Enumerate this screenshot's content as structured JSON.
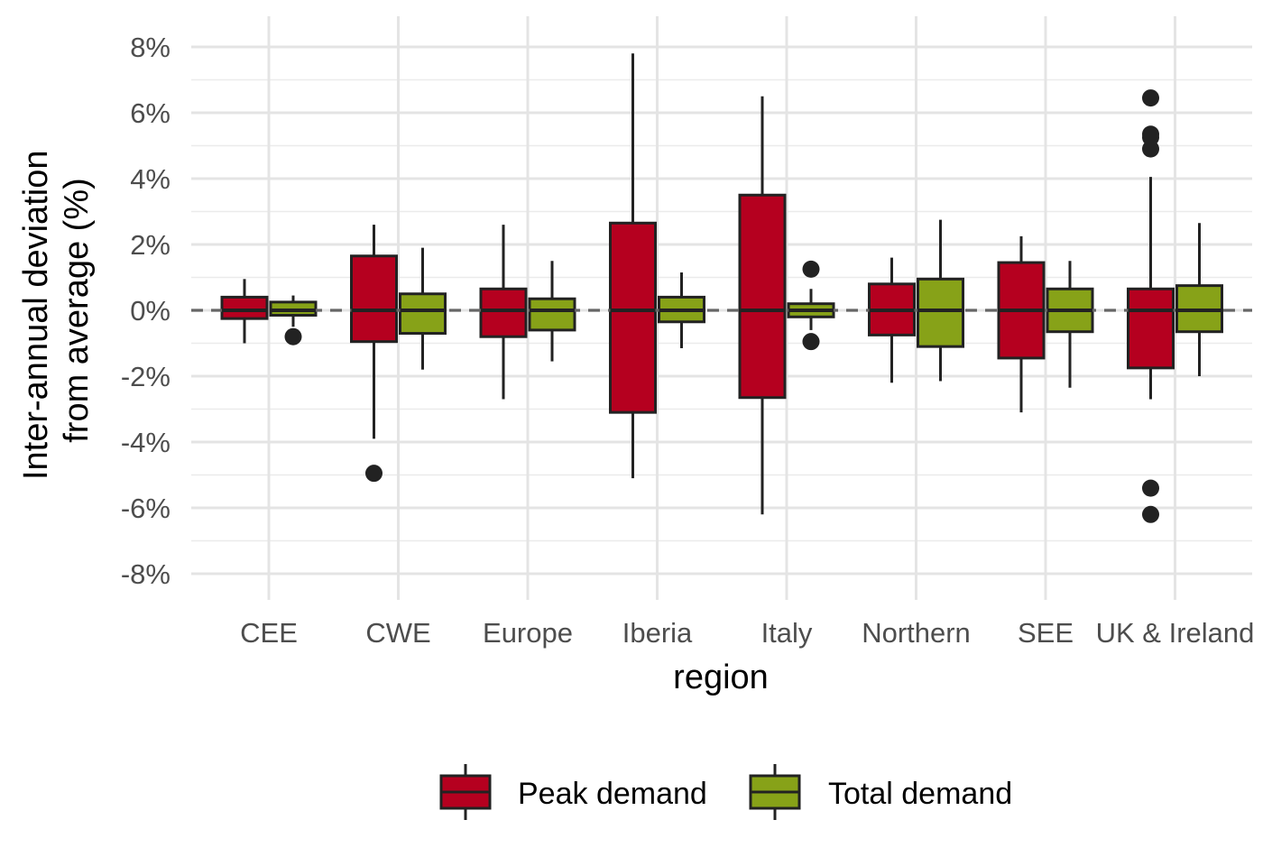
{
  "chart_data": {
    "type": "boxplot",
    "xlabel": "region",
    "ylabel_lines": [
      "Inter-annual deviation",
      "from average (%)"
    ],
    "ylim": [
      -8.5,
      8.6
    ],
    "y_ticks": [
      {
        "value": 8,
        "label": "8%"
      },
      {
        "value": 6,
        "label": "6%"
      },
      {
        "value": 4,
        "label": "4%"
      },
      {
        "value": 2,
        "label": "2%"
      },
      {
        "value": 0,
        "label": "0%"
      },
      {
        "value": -2,
        "label": "-2%"
      },
      {
        "value": -4,
        "label": "-4%"
      },
      {
        "value": -6,
        "label": "-6%"
      },
      {
        "value": -8,
        "label": "-8%"
      }
    ],
    "y_minor_ticks": [
      7,
      5,
      3,
      1,
      -1,
      -3,
      -5,
      -7
    ],
    "reference_line": 0,
    "categories": [
      "CEE",
      "CWE",
      "Europe",
      "Iberia",
      "Italy",
      "Northern",
      "SEE",
      "UK & Ireland"
    ],
    "legend_position": "bottom",
    "series": [
      {
        "name": "Peak demand",
        "color": "#b5001f",
        "boxes": [
          {
            "whisker_low": -1.0,
            "q1": -0.25,
            "median": 0.0,
            "q3": 0.4,
            "whisker_high": 0.95,
            "outliers": []
          },
          {
            "whisker_low": -3.9,
            "q1": -0.95,
            "median": 0.0,
            "q3": 1.65,
            "whisker_high": 2.6,
            "outliers": [
              -4.95
            ]
          },
          {
            "whisker_low": -2.7,
            "q1": -0.8,
            "median": 0.0,
            "q3": 0.65,
            "whisker_high": 2.6,
            "outliers": []
          },
          {
            "whisker_low": -5.1,
            "q1": -3.1,
            "median": 0.0,
            "q3": 2.65,
            "whisker_high": 7.8,
            "outliers": []
          },
          {
            "whisker_low": -6.2,
            "q1": -2.65,
            "median": 0.0,
            "q3": 3.5,
            "whisker_high": 6.5,
            "outliers": []
          },
          {
            "whisker_low": -2.2,
            "q1": -0.75,
            "median": 0.0,
            "q3": 0.8,
            "whisker_high": 1.6,
            "outliers": []
          },
          {
            "whisker_low": -3.1,
            "q1": -1.45,
            "median": 0.0,
            "q3": 1.45,
            "whisker_high": 2.25,
            "outliers": []
          },
          {
            "whisker_low": -2.7,
            "q1": -1.75,
            "median": 0.0,
            "q3": 0.65,
            "whisker_high": 4.05,
            "outliers": [
              6.45,
              5.35,
              5.25,
              4.9,
              -5.4,
              -6.2
            ]
          }
        ]
      },
      {
        "name": "Total demand",
        "color": "#87a218",
        "boxes": [
          {
            "whisker_low": -0.5,
            "q1": -0.15,
            "median": 0.0,
            "q3": 0.25,
            "whisker_high": 0.45,
            "outliers": [
              -0.8
            ]
          },
          {
            "whisker_low": -1.8,
            "q1": -0.7,
            "median": 0.0,
            "q3": 0.5,
            "whisker_high": 1.9,
            "outliers": []
          },
          {
            "whisker_low": -1.55,
            "q1": -0.6,
            "median": 0.0,
            "q3": 0.35,
            "whisker_high": 1.5,
            "outliers": []
          },
          {
            "whisker_low": -1.15,
            "q1": -0.35,
            "median": 0.0,
            "q3": 0.4,
            "whisker_high": 1.15,
            "outliers": []
          },
          {
            "whisker_low": -0.6,
            "q1": -0.2,
            "median": 0.0,
            "q3": 0.2,
            "whisker_high": 0.65,
            "outliers": [
              1.25,
              -0.95
            ]
          },
          {
            "whisker_low": -2.15,
            "q1": -1.1,
            "median": 0.0,
            "q3": 0.95,
            "whisker_high": 2.75,
            "outliers": []
          },
          {
            "whisker_low": -2.35,
            "q1": -0.65,
            "median": 0.0,
            "q3": 0.65,
            "whisker_high": 1.5,
            "outliers": []
          },
          {
            "whisker_low": -2.0,
            "q1": -0.65,
            "median": 0.0,
            "q3": 0.75,
            "whisker_high": 2.65,
            "outliers": []
          }
        ]
      }
    ]
  }
}
